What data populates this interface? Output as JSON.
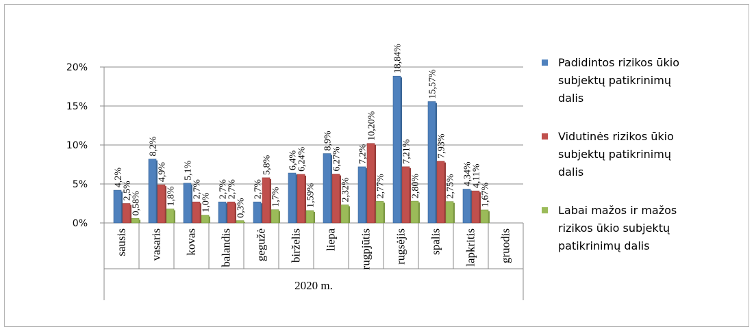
{
  "chart_data": {
    "type": "bar",
    "title": "",
    "xlabel": "2020 m.",
    "ylabel": "",
    "ylim": [
      0,
      20
    ],
    "y_ticks": [
      "0%",
      "5%",
      "10%",
      "15%",
      "20%"
    ],
    "grid": true,
    "legend_position": "right",
    "categories": [
      "sausis",
      "vasaris",
      "kovas",
      "balandis",
      "gegužė",
      "birželis",
      "liepa",
      "rugpjūtis",
      "rugsėjis",
      "spalis",
      "lapkritis",
      "gruodis"
    ],
    "series": [
      {
        "name": "Padidintos rizikos ūkio subjektų patikrinimų dalis",
        "color": "#4f81bd",
        "values": [
          4.2,
          8.2,
          5.1,
          2.7,
          2.7,
          6.4,
          8.9,
          7.2,
          18.84,
          15.57,
          4.34,
          null
        ],
        "labels": [
          "4,2%",
          "8,2%",
          "5,1%",
          "2,7%",
          "2,7%",
          "6,4%",
          "8,9%",
          "7,2%",
          "18,84%",
          "15,57%",
          "4,34%",
          ""
        ]
      },
      {
        "name": "Vidutinės rizikos ūkio subjektų patikrinimų dalis",
        "color": "#c0504d",
        "values": [
          2.5,
          4.9,
          2.7,
          2.7,
          5.8,
          6.24,
          6.27,
          10.2,
          7.21,
          7.93,
          4.11,
          null
        ],
        "labels": [
          "2,5%",
          "4,9%",
          "2,7%",
          "2,7%",
          "5,8%",
          "6,24%",
          "6,27%",
          "10,20%",
          "7,21%",
          "7,93%",
          "4,11%",
          ""
        ]
      },
      {
        "name": "Labai mažos ir mažos rizikos ūkio subjektų patikrinimų dalis",
        "color": "#9bbb59",
        "values": [
          0.58,
          1.8,
          1.0,
          0.3,
          1.7,
          1.59,
          2.32,
          2.77,
          2.8,
          2.75,
          1.67,
          null
        ],
        "labels": [
          "0,58%",
          "1,8%",
          "1,0%",
          "0,3%",
          "1,7%",
          "1,59%",
          "2,32%",
          "2,77%",
          "2,80%",
          "2,75%",
          "1,67%",
          ""
        ]
      }
    ]
  },
  "legend_lines": [
    [
      "Padidintos rizikos ūkio",
      "subjektų patikrinimų",
      "dalis"
    ],
    [
      "Vidutinės rizikos ūkio",
      "subjektų patikrinimų",
      "dalis"
    ],
    [
      "Labai mažos ir mažos",
      "rizikos ūkio subjektų",
      "patikrinimų dalis"
    ]
  ]
}
